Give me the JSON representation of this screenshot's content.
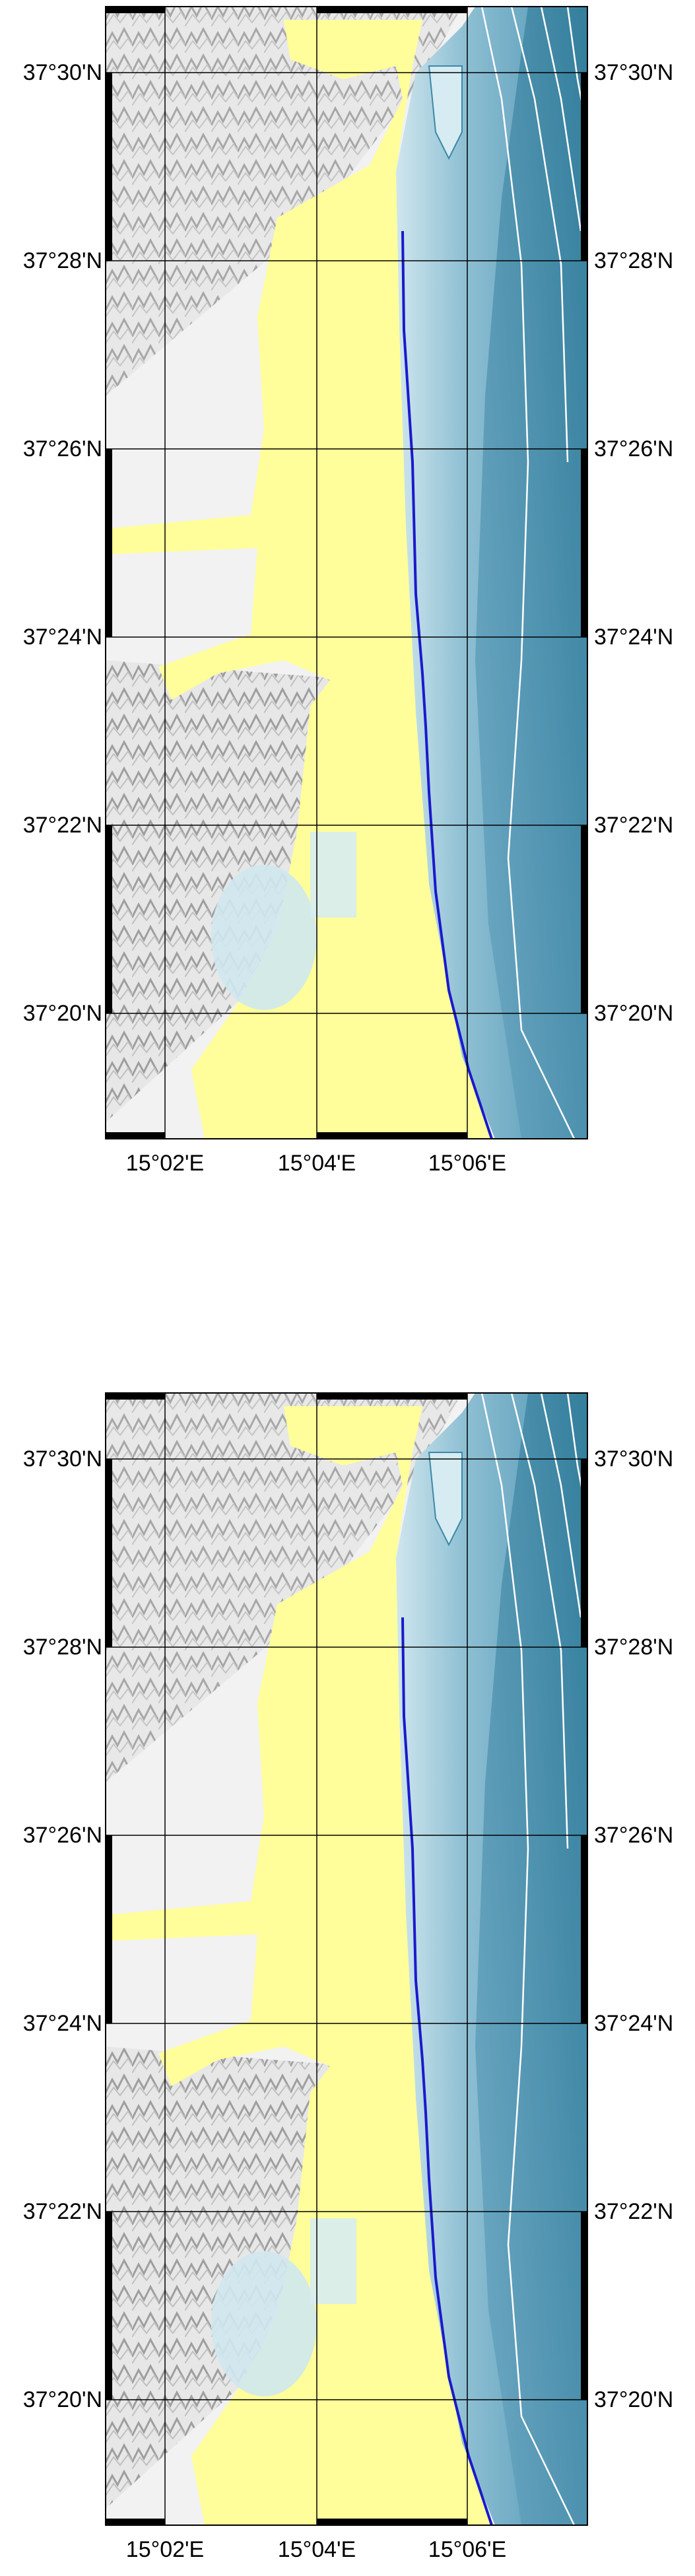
{
  "maps": [
    {
      "lat_labels": [
        "37°30'N",
        "37°28'N",
        "37°26'N",
        "37°24'N",
        "37°22'N",
        "37°20'N"
      ],
      "lon_labels": [
        "15°02'E",
        "15°04'E",
        "15°06'E"
      ]
    },
    {
      "lat_labels": [
        "37°30'N",
        "37°28'N",
        "37°26'N",
        "37°24'N",
        "37°22'N",
        "37°20'N"
      ],
      "lon_labels": [
        "15°02'E",
        "15°04'E",
        "15°06'E"
      ]
    }
  ],
  "colors": {
    "land_hillshade": "#d9d9d9",
    "inundation": "#fffe9a",
    "sea_shallow": "#b8d9e4",
    "sea_mid": "#7fb3cc",
    "sea_deep": "#3f8aa8",
    "shoreline": "#1a1acc",
    "contour": "#ffffff",
    "frame": "#000000"
  }
}
